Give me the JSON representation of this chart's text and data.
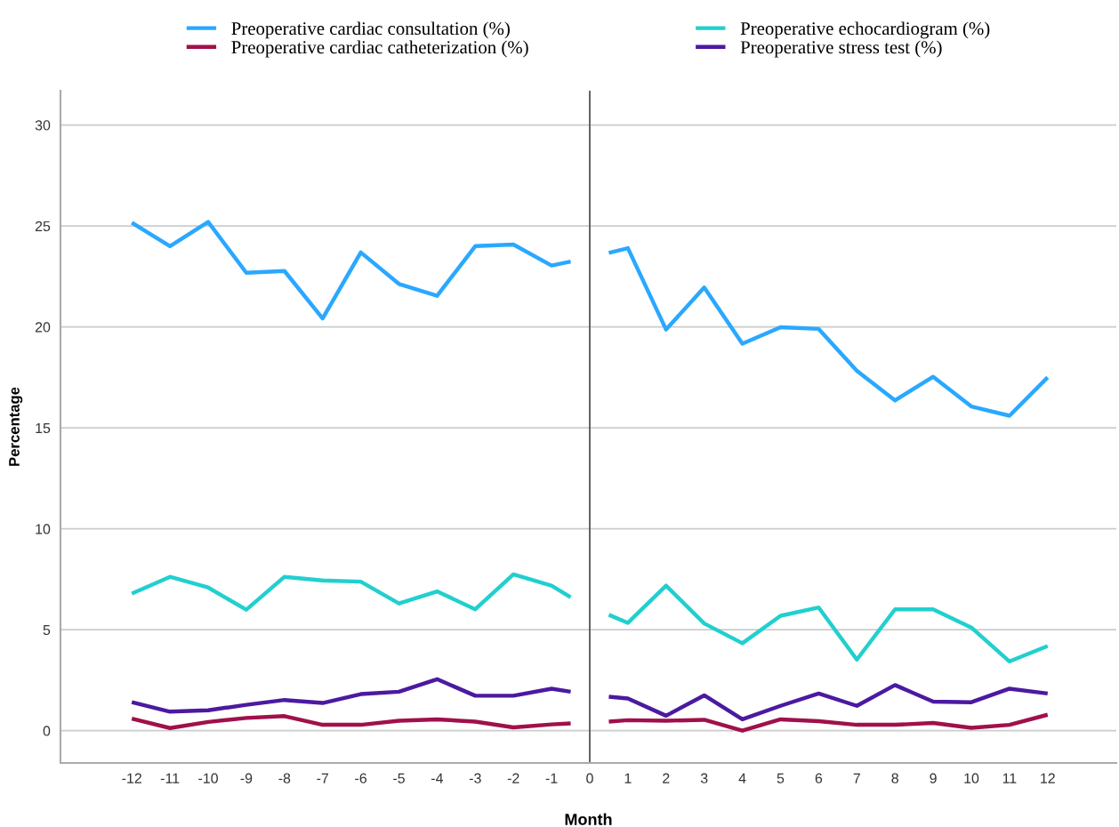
{
  "chart_data": {
    "type": "line",
    "xlabel": "Month",
    "ylabel": "Percentage",
    "x": [
      -12,
      -11,
      -10,
      -9,
      -8,
      -7,
      -6,
      -5,
      -4,
      -3,
      -2,
      -1,
      -0.5,
      0,
      0.5,
      1,
      2,
      3,
      4,
      5,
      6,
      7,
      8,
      9,
      10,
      11,
      12
    ],
    "series": [
      {
        "name": "Preoperative cardiac consultation (%)",
        "color": "#2aa8ff",
        "values": [
          25.16,
          24.0,
          25.2,
          22.68,
          22.77,
          20.42,
          23.69,
          22.13,
          21.54,
          24.0,
          24.08,
          23.04,
          23.24,
          null,
          23.67,
          23.9,
          19.87,
          21.95,
          19.17,
          19.98,
          19.9,
          17.82,
          16.36,
          17.53,
          16.06,
          15.6,
          17.5
        ]
      },
      {
        "name": "Preoperative echocardiogram (%)",
        "color": "#22cfcf",
        "values": [
          6.79,
          7.62,
          7.09,
          5.99,
          7.62,
          7.44,
          7.38,
          6.3,
          6.9,
          6.01,
          7.74,
          7.18,
          6.61,
          null,
          5.74,
          5.34,
          7.18,
          5.31,
          4.33,
          5.69,
          6.1,
          3.52,
          6.01,
          6.01,
          5.11,
          3.43,
          4.19
        ]
      },
      {
        "name": "Preoperative cardiac catheterization (%)",
        "color": "#a0104a",
        "values": [
          0.6,
          0.13,
          0.43,
          0.63,
          0.72,
          0.29,
          0.29,
          0.49,
          0.56,
          0.45,
          0.16,
          0.31,
          0.36,
          null,
          0.45,
          0.52,
          0.49,
          0.54,
          0.0,
          0.56,
          0.47,
          0.29,
          0.29,
          0.38,
          0.14,
          0.29,
          0.79
        ]
      },
      {
        "name": "Preoperative stress test (%)",
        "color": "#4b1aa0",
        "values": [
          1.41,
          0.94,
          1.01,
          1.28,
          1.52,
          1.37,
          1.81,
          1.93,
          2.55,
          1.73,
          1.73,
          2.08,
          1.93,
          null,
          1.68,
          1.59,
          0.74,
          1.75,
          0.56,
          1.23,
          1.84,
          1.23,
          2.26,
          1.44,
          1.41,
          2.08,
          1.84
        ]
      }
    ],
    "xlim": [
      -13.87,
      13.8
    ],
    "ylim": [
      -1.6,
      31.7
    ],
    "xticks": [
      -12,
      -11,
      -10,
      -9,
      -8,
      -7,
      -6,
      -5,
      -4,
      -3,
      -2,
      -1,
      0,
      1,
      2,
      3,
      4,
      5,
      6,
      7,
      8,
      9,
      10,
      11,
      12
    ],
    "yticks": [
      0,
      5,
      10,
      15,
      20,
      25,
      30
    ],
    "ref_lines": [
      {
        "axis": "x",
        "value": 0,
        "label": null,
        "color": "#555555",
        "line_style": "solid"
      }
    ],
    "grid": "y",
    "legend": "top",
    "marker": "none",
    "line_style": "solid"
  }
}
